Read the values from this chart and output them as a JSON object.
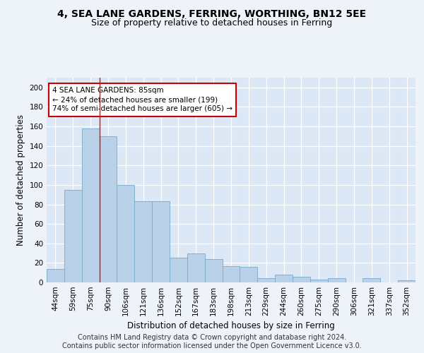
{
  "title1": "4, SEA LANE GARDENS, FERRING, WORTHING, BN12 5EE",
  "title2": "Size of property relative to detached houses in Ferring",
  "xlabel": "Distribution of detached houses by size in Ferring",
  "ylabel": "Number of detached properties",
  "categories": [
    "44sqm",
    "59sqm",
    "75sqm",
    "90sqm",
    "106sqm",
    "121sqm",
    "136sqm",
    "152sqm",
    "167sqm",
    "183sqm",
    "198sqm",
    "213sqm",
    "229sqm",
    "244sqm",
    "260sqm",
    "275sqm",
    "290sqm",
    "306sqm",
    "321sqm",
    "337sqm",
    "352sqm"
  ],
  "values": [
    14,
    95,
    158,
    150,
    100,
    83,
    83,
    25,
    30,
    24,
    17,
    16,
    4,
    8,
    6,
    3,
    4,
    0,
    4,
    0,
    2
  ],
  "bar_color": "#b8d0e8",
  "bar_edge_color": "#7aaaca",
  "background_color": "#dce8f5",
  "fig_background_color": "#eef3fa",
  "grid_color": "#ffffff",
  "annotation_line1": "4 SEA LANE GARDENS: 85sqm",
  "annotation_line2": "← 24% of detached houses are smaller (199)",
  "annotation_line3": "74% of semi-detached houses are larger (605) →",
  "annotation_box_color": "#ffffff",
  "annotation_box_edge_color": "#cc0000",
  "red_line_x": 2.5,
  "ylim": [
    0,
    210
  ],
  "yticks": [
    0,
    20,
    40,
    60,
    80,
    100,
    120,
    140,
    160,
    180,
    200
  ],
  "footer_text": "Contains HM Land Registry data © Crown copyright and database right 2024.\nContains public sector information licensed under the Open Government Licence v3.0.",
  "title_fontsize": 10,
  "subtitle_fontsize": 9,
  "axis_label_fontsize": 8.5,
  "tick_fontsize": 7.5,
  "footer_fontsize": 7,
  "annotation_fontsize": 7.5
}
